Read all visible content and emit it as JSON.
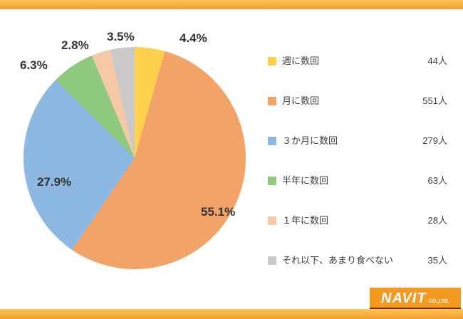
{
  "chart_data": {
    "type": "pie",
    "title": "",
    "legend_position": "right",
    "start_angle_deg": 0,
    "direction": "clockwise",
    "slices": [
      {
        "label": "週に数回",
        "value": 4.4,
        "pct_label": "4.4%",
        "count": "44人",
        "color": "#ffd04d"
      },
      {
        "label": "月に数回",
        "value": 55.1,
        "pct_label": "55.1%",
        "count": "551人",
        "color": "#f2a368"
      },
      {
        "label": "３か月に数回",
        "value": 27.9,
        "pct_label": "27.9%",
        "count": "279人",
        "color": "#8db8e2"
      },
      {
        "label": "半年に数回",
        "value": 6.3,
        "pct_label": "6.3%",
        "count": "63人",
        "color": "#8fc97e"
      },
      {
        "label": "１年に数回",
        "value": 2.8,
        "pct_label": "2.8%",
        "count": "28人",
        "color": "#f5c9a6"
      },
      {
        "label": "それ以下、あまり食べない",
        "value": 3.5,
        "pct_label": "3.5%",
        "count": "35人",
        "color": "#c9c9c9"
      }
    ]
  },
  "footer": {
    "logo_name": "NAVIT",
    "logo_suffix": "CO.,LTD.",
    "logo_url": "www.navit-j.com"
  },
  "theme": {
    "band_color_top": "#fcc455",
    "band_color_bottom": "#f5a02e"
  }
}
